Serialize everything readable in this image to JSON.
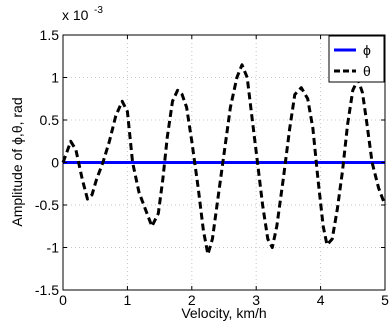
{
  "chart_data": {
    "type": "line",
    "xlabel": "Velocity, km/h",
    "ylabel": "Amplitude of ϕ,θ, rad",
    "y_multiplier_label": "x 10",
    "y_multiplier_exponent": "-3",
    "xlim": [
      0,
      5
    ],
    "ylim": [
      -1.5,
      1.5
    ],
    "x_ticks": [
      0,
      1,
      2,
      3,
      4,
      5
    ],
    "x_tick_labels": [
      "0",
      "1",
      "2",
      "3",
      "4",
      "5"
    ],
    "y_ticks": [
      1.5,
      1,
      0.5,
      0,
      -0.5,
      -1,
      -1.5
    ],
    "y_tick_labels": [
      "1.5",
      "1",
      "0.5",
      "0",
      "-0.5",
      "-1",
      "-1.5"
    ],
    "grid": true,
    "legend_position": "top-right",
    "series": [
      {
        "name": "ϕ",
        "color": "#0000ff",
        "style": "solid",
        "x": [
          0,
          5
        ],
        "y": [
          0,
          0
        ]
      },
      {
        "name": "θ",
        "color": "#000000",
        "style": "dashed",
        "x": [
          0.0,
          0.05,
          0.12,
          0.2,
          0.3,
          0.38,
          0.45,
          0.52,
          0.62,
          0.72,
          0.82,
          0.92,
          1.0,
          1.08,
          1.18,
          1.28,
          1.38,
          1.48,
          1.55,
          1.62,
          1.7,
          1.78,
          1.85,
          1.92,
          2.0,
          2.1,
          2.18,
          2.25,
          2.32,
          2.4,
          2.5,
          2.6,
          2.7,
          2.78,
          2.86,
          2.94,
          3.02,
          3.1,
          3.18,
          3.25,
          3.32,
          3.42,
          3.52,
          3.6,
          3.7,
          3.8,
          3.88,
          3.96,
          4.04,
          4.1,
          4.18,
          4.26,
          4.34,
          4.42,
          4.5,
          4.58,
          4.65,
          4.72,
          4.8,
          4.9,
          5.0
        ],
        "y": [
          0.0,
          0.1,
          0.25,
          0.15,
          -0.2,
          -0.43,
          -0.38,
          -0.2,
          0.0,
          0.25,
          0.55,
          0.72,
          0.6,
          0.0,
          -0.35,
          -0.55,
          -0.75,
          -0.6,
          -0.2,
          0.3,
          0.72,
          0.85,
          0.8,
          0.65,
          0.25,
          -0.3,
          -0.8,
          -1.08,
          -0.9,
          -0.45,
          0.1,
          0.65,
          1.0,
          1.15,
          1.0,
          0.5,
          0.0,
          -0.5,
          -0.9,
          -1.0,
          -0.75,
          -0.2,
          0.4,
          0.8,
          0.88,
          0.75,
          0.4,
          -0.2,
          -0.75,
          -0.97,
          -0.9,
          -0.55,
          -0.1,
          0.45,
          0.85,
          0.98,
          0.82,
          0.45,
          0.0,
          -0.3,
          -0.5
        ]
      }
    ]
  }
}
